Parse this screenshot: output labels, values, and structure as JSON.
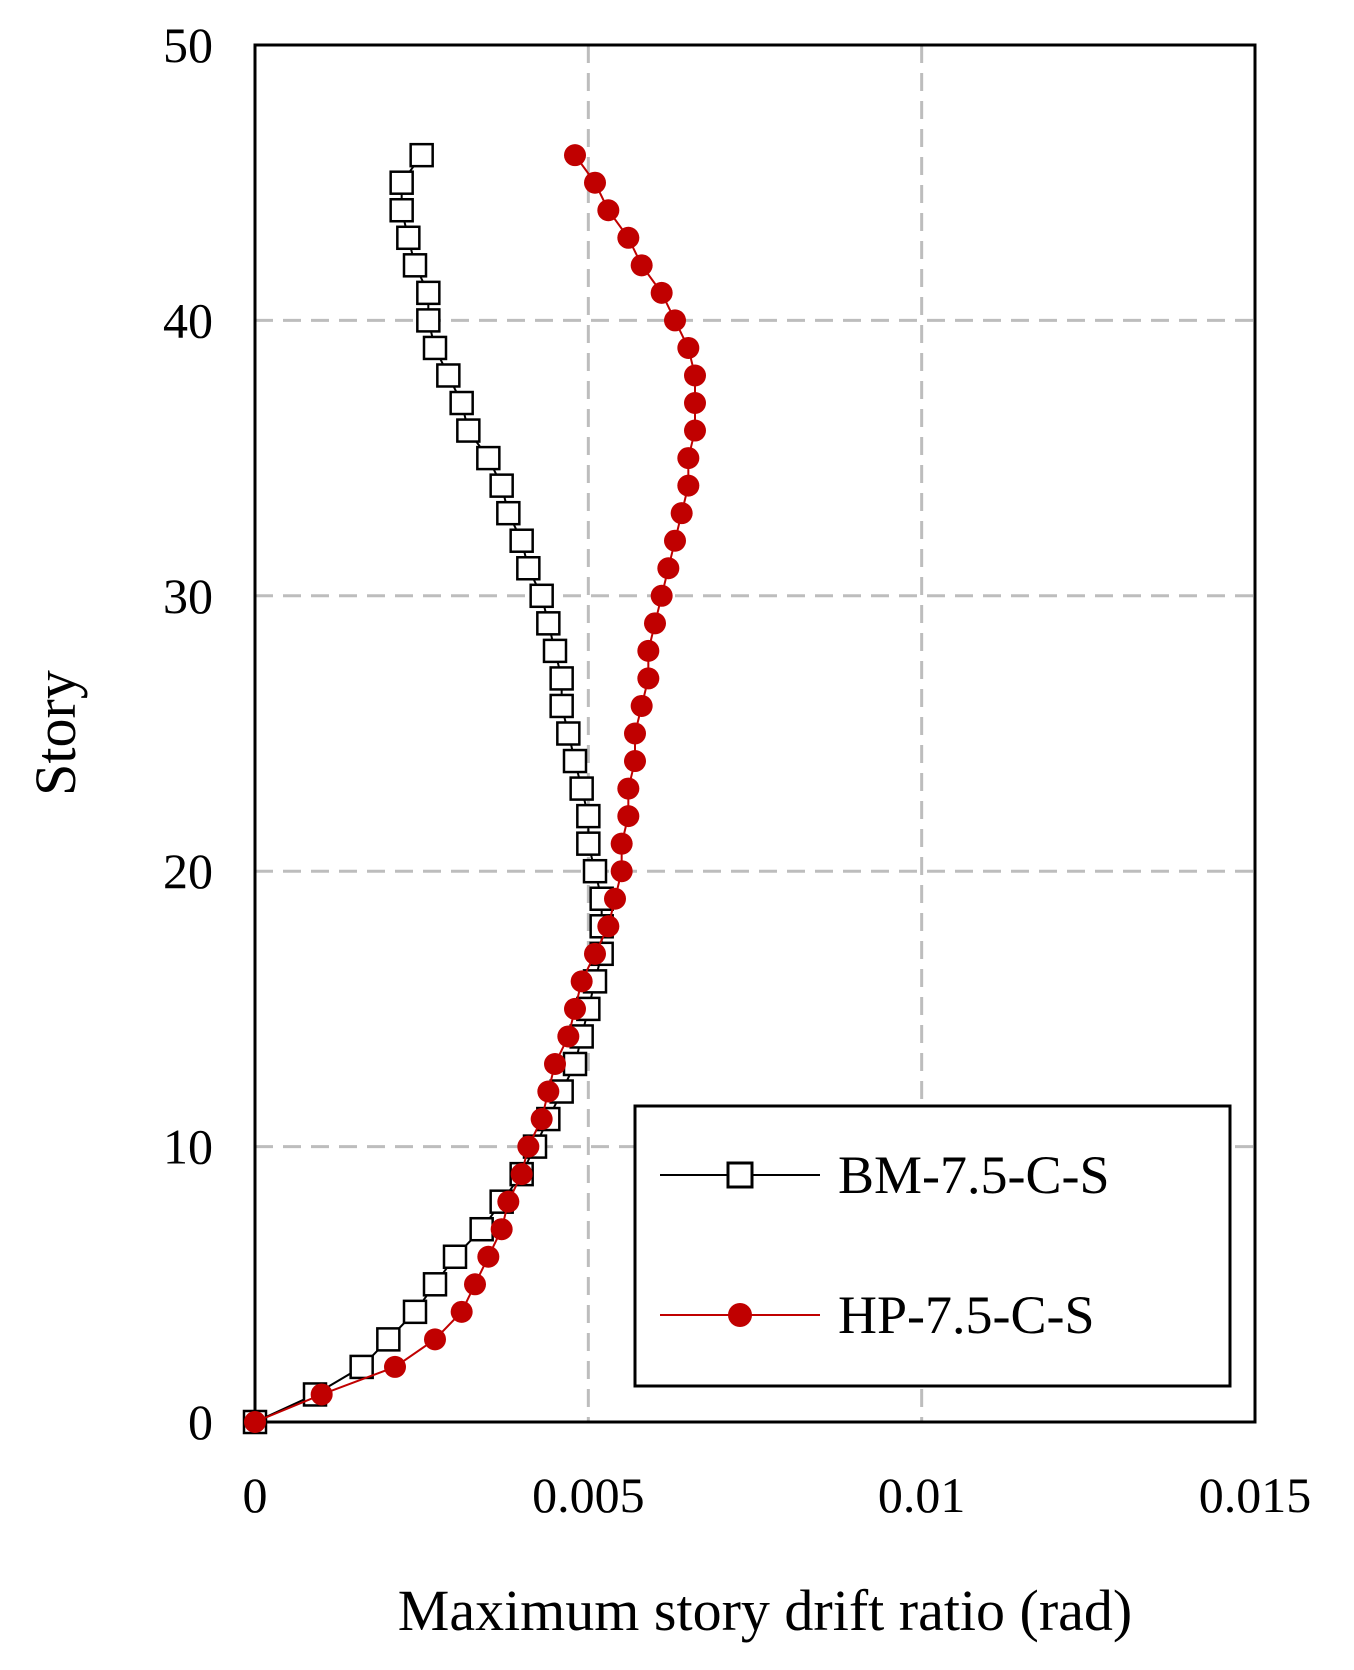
{
  "chart_data": {
    "type": "line",
    "xlabel": "Maximum story drift ratio (rad)",
    "ylabel": "Story",
    "xlim": [
      0,
      0.015
    ],
    "ylim": [
      0,
      50
    ],
    "x_ticks": [
      "0",
      "0.005",
      "0.01",
      "0.015"
    ],
    "y_ticks": [
      "0",
      "10",
      "20",
      "30",
      "40",
      "50"
    ],
    "grid": true,
    "legend_position": "bottom-right",
    "series": [
      {
        "name": "BM-7.5-C-S",
        "color": "#000000",
        "marker": "open-square",
        "points": [
          [
            0.0,
            0
          ],
          [
            0.0009,
            1
          ],
          [
            0.0016,
            2
          ],
          [
            0.002,
            3
          ],
          [
            0.0024,
            4
          ],
          [
            0.0027,
            5
          ],
          [
            0.003,
            6
          ],
          [
            0.0034,
            7
          ],
          [
            0.0037,
            8
          ],
          [
            0.004,
            9
          ],
          [
            0.0042,
            10
          ],
          [
            0.0044,
            11
          ],
          [
            0.0046,
            12
          ],
          [
            0.0048,
            13
          ],
          [
            0.0049,
            14
          ],
          [
            0.005,
            15
          ],
          [
            0.0051,
            16
          ],
          [
            0.0052,
            17
          ],
          [
            0.0052,
            18
          ],
          [
            0.0052,
            19
          ],
          [
            0.0051,
            20
          ],
          [
            0.005,
            21
          ],
          [
            0.005,
            22
          ],
          [
            0.0049,
            23
          ],
          [
            0.0048,
            24
          ],
          [
            0.0047,
            25
          ],
          [
            0.0046,
            26
          ],
          [
            0.0046,
            27
          ],
          [
            0.0045,
            28
          ],
          [
            0.0044,
            29
          ],
          [
            0.0043,
            30
          ],
          [
            0.0041,
            31
          ],
          [
            0.004,
            32
          ],
          [
            0.0038,
            33
          ],
          [
            0.0037,
            34
          ],
          [
            0.0035,
            35
          ],
          [
            0.0032,
            36
          ],
          [
            0.0031,
            37
          ],
          [
            0.0029,
            38
          ],
          [
            0.0027,
            39
          ],
          [
            0.0026,
            40
          ],
          [
            0.0026,
            41
          ],
          [
            0.0024,
            42
          ],
          [
            0.0023,
            43
          ],
          [
            0.0022,
            44
          ],
          [
            0.0022,
            45
          ],
          [
            0.0025,
            46
          ]
        ]
      },
      {
        "name": "HP-7.5-C-S",
        "color": "#c00000",
        "marker": "filled-circle",
        "points": [
          [
            0.0,
            0
          ],
          [
            0.001,
            1
          ],
          [
            0.0021,
            2
          ],
          [
            0.0027,
            3
          ],
          [
            0.0031,
            4
          ],
          [
            0.0033,
            5
          ],
          [
            0.0035,
            6
          ],
          [
            0.0037,
            7
          ],
          [
            0.0038,
            8
          ],
          [
            0.004,
            9
          ],
          [
            0.0041,
            10
          ],
          [
            0.0043,
            11
          ],
          [
            0.0044,
            12
          ],
          [
            0.0045,
            13
          ],
          [
            0.0047,
            14
          ],
          [
            0.0048,
            15
          ],
          [
            0.0049,
            16
          ],
          [
            0.0051,
            17
          ],
          [
            0.0053,
            18
          ],
          [
            0.0054,
            19
          ],
          [
            0.0055,
            20
          ],
          [
            0.0055,
            21
          ],
          [
            0.0056,
            22
          ],
          [
            0.0056,
            23
          ],
          [
            0.0057,
            24
          ],
          [
            0.0057,
            25
          ],
          [
            0.0058,
            26
          ],
          [
            0.0059,
            27
          ],
          [
            0.0059,
            28
          ],
          [
            0.006,
            29
          ],
          [
            0.0061,
            30
          ],
          [
            0.0062,
            31
          ],
          [
            0.0063,
            32
          ],
          [
            0.0064,
            33
          ],
          [
            0.0065,
            34
          ],
          [
            0.0065,
            35
          ],
          [
            0.0066,
            36
          ],
          [
            0.0066,
            37
          ],
          [
            0.0066,
            38
          ],
          [
            0.0065,
            39
          ],
          [
            0.0063,
            40
          ],
          [
            0.0061,
            41
          ],
          [
            0.0058,
            42
          ],
          [
            0.0056,
            43
          ],
          [
            0.0053,
            44
          ],
          [
            0.0051,
            45
          ],
          [
            0.0048,
            46
          ]
        ]
      }
    ]
  }
}
